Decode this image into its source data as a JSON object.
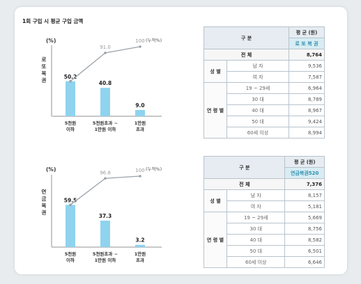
{
  "page_title": "1회 구입 시 평균 구입 금액",
  "chart_data": [
    {
      "type": "bar",
      "side_label": "로또복권",
      "ylabel": "(%)",
      "categories": [
        "5천원 이하",
        "5천원초과 ~ 1만원 이하",
        "1만원 초과"
      ],
      "category_lines": [
        [
          "5천원",
          "이하"
        ],
        [
          "5천원초과 ~",
          "1만원 이하"
        ],
        [
          "1만원",
          "초과"
        ]
      ],
      "values": [
        50.2,
        40.8,
        9.0
      ],
      "value_labels": [
        "50.2",
        "40.8",
        "9.0"
      ],
      "cumulative": [
        50.2,
        91.0,
        100
      ],
      "cumulative_labels": [
        "91.0",
        "100"
      ],
      "cumulative_legend": "(누적%)",
      "ylim": [
        0,
        100
      ],
      "bar_color": "#8fd3ee",
      "line_color": "#9aa3aa"
    },
    {
      "type": "bar",
      "side_label": "연금복권",
      "ylabel": "(%)",
      "categories": [
        "5천원 이하",
        "5천원초과 ~ 1만원 이하",
        "1만원 초과"
      ],
      "category_lines": [
        [
          "5천원",
          "이하"
        ],
        [
          "5천원초과 ~",
          "1만원 이하"
        ],
        [
          "1만원",
          "초과"
        ]
      ],
      "values": [
        59.5,
        37.3,
        3.2
      ],
      "value_labels": [
        "59.5",
        "37.3",
        "3.2"
      ],
      "cumulative": [
        59.5,
        96.8,
        100
      ],
      "cumulative_labels": [
        "96.8",
        "100"
      ],
      "cumulative_legend": "(누적%)",
      "ylim": [
        0,
        100
      ],
      "bar_color": "#8fd3ee",
      "line_color": "#9aa3aa"
    }
  ],
  "tables": [
    {
      "header_group": "구 분",
      "header_value": "평 균 (원)",
      "product": "로 또 복 권",
      "total_label": "전 체",
      "total_value": "8,764",
      "gender_label": "성 별",
      "gender_rows": [
        [
          "남 자",
          "9,536"
        ],
        [
          "여 자",
          "7,587"
        ]
      ],
      "age_label": "연 령 별",
      "age_rows": [
        [
          "19 ~ 29세",
          "6,964"
        ],
        [
          "30 대",
          "8,789"
        ],
        [
          "40 대",
          "8,967"
        ],
        [
          "50 대",
          "9,424"
        ],
        [
          "60세 이상",
          "8,994"
        ]
      ]
    },
    {
      "header_group": "구 분",
      "header_value": "평 균 (원)",
      "product": "연금복권520",
      "total_label": "전 체",
      "total_value": "7,376",
      "gender_label": "성 별",
      "gender_rows": [
        [
          "남 자",
          "8,157"
        ],
        [
          "여 자",
          "5,181"
        ]
      ],
      "age_label": "연 령 별",
      "age_rows": [
        [
          "19 ~ 29세",
          "5,669"
        ],
        [
          "30 대",
          "8,756"
        ],
        [
          "40 대",
          "8,582"
        ],
        [
          "50 대",
          "6,501"
        ],
        [
          "60세 이상",
          "6,646"
        ]
      ]
    }
  ]
}
